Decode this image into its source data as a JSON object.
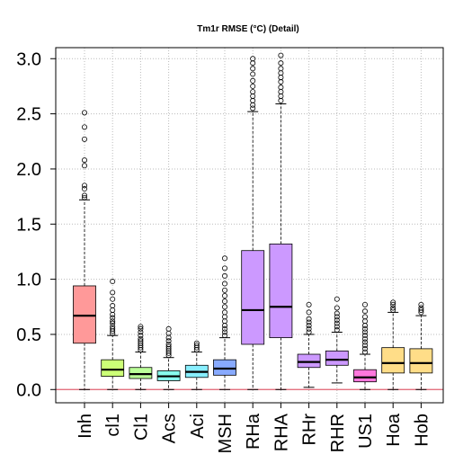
{
  "chart_data": {
    "type": "box",
    "title": "Tm1r RMSE (°C) (Detail)",
    "xlabel": "",
    "ylabel": "",
    "ylim": [
      -0.12,
      3.1
    ],
    "yticks": [
      0.0,
      0.5,
      1.0,
      1.5,
      2.0,
      2.5,
      3.0
    ],
    "ytick_labels": [
      "0.0",
      "0.5",
      "1.0",
      "1.5",
      "2.0",
      "2.5",
      "3.0"
    ],
    "grid": true,
    "reference_line": 0.0,
    "categories": [
      "Inh",
      "cl1",
      "Cl1",
      "Acs",
      "Aci",
      "MSH",
      "RHa",
      "RHA",
      "RHr",
      "RHR",
      "US1",
      "Hoa",
      "Hob"
    ],
    "boxes": [
      {
        "label": "Inh",
        "color": "#ff9999",
        "min": 0.0,
        "q1": 0.42,
        "median": 0.67,
        "q3": 0.94,
        "max": 1.72,
        "outliers": [
          1.74,
          1.76,
          1.82,
          1.85,
          2.03,
          2.08,
          2.27,
          2.38,
          2.51
        ]
      },
      {
        "label": "cl1",
        "color": "#ccff77",
        "min": 0.0,
        "q1": 0.12,
        "median": 0.18,
        "q3": 0.27,
        "max": 0.49,
        "outliers": [
          0.51,
          0.53,
          0.55,
          0.57,
          0.6,
          0.62,
          0.65,
          0.68,
          0.72,
          0.76,
          0.82,
          0.88,
          0.98
        ]
      },
      {
        "label": "Cl1",
        "color": "#bbff99",
        "min": 0.0,
        "q1": 0.1,
        "median": 0.14,
        "q3": 0.2,
        "max": 0.34,
        "outliers": [
          0.36,
          0.38,
          0.4,
          0.42,
          0.44,
          0.46,
          0.49,
          0.52,
          0.55,
          0.57
        ]
      },
      {
        "label": "Acs",
        "color": "#88ffee",
        "min": 0.0,
        "q1": 0.08,
        "median": 0.12,
        "q3": 0.17,
        "max": 0.29,
        "outliers": [
          0.31,
          0.33,
          0.35,
          0.37,
          0.39,
          0.41,
          0.44,
          0.47,
          0.51,
          0.55
        ]
      },
      {
        "label": "Aci",
        "color": "#88eeff",
        "min": 0.0,
        "q1": 0.11,
        "median": 0.16,
        "q3": 0.22,
        "max": 0.34,
        "outliers": [
          0.36,
          0.38,
          0.4,
          0.42
        ]
      },
      {
        "label": "MSH",
        "color": "#88aaff",
        "min": 0.0,
        "q1": 0.13,
        "median": 0.19,
        "q3": 0.27,
        "max": 0.47,
        "outliers": [
          0.49,
          0.52,
          0.55,
          0.58,
          0.62,
          0.66,
          0.7,
          0.75,
          0.8,
          0.85,
          0.9,
          0.96,
          1.03,
          1.1,
          1.19
        ]
      },
      {
        "label": "RHa",
        "color": "#cc99ff",
        "min": 0.0,
        "q1": 0.41,
        "median": 0.72,
        "q3": 1.26,
        "max": 2.52,
        "outliers": [
          2.55,
          2.58,
          2.62,
          2.66,
          2.7,
          2.75,
          2.8,
          2.86,
          2.91,
          2.96,
          3.0
        ]
      },
      {
        "label": "RHA",
        "color": "#cc99ff",
        "min": 0.0,
        "q1": 0.47,
        "median": 0.75,
        "q3": 1.32,
        "max": 2.59,
        "outliers": [
          2.62,
          2.66,
          2.7,
          2.74,
          2.79,
          2.83,
          2.87,
          2.91,
          2.96,
          3.03
        ]
      },
      {
        "label": "RHr",
        "color": "#cc99ff",
        "min": 0.02,
        "q1": 0.2,
        "median": 0.25,
        "q3": 0.32,
        "max": 0.5,
        "outliers": [
          0.52,
          0.55,
          0.58,
          0.61,
          0.64,
          0.7,
          0.77
        ]
      },
      {
        "label": "RHR",
        "color": "#cc99ff",
        "min": 0.06,
        "q1": 0.22,
        "median": 0.27,
        "q3": 0.35,
        "max": 0.52,
        "outliers": [
          0.54,
          0.57,
          0.6,
          0.63,
          0.66,
          0.69,
          0.74,
          0.82
        ]
      },
      {
        "label": "US1",
        "color": "#ff77dd",
        "min": 0.0,
        "q1": 0.07,
        "median": 0.11,
        "q3": 0.18,
        "max": 0.32,
        "outliers": [
          0.34,
          0.37,
          0.4,
          0.43,
          0.46,
          0.49,
          0.52,
          0.55,
          0.58,
          0.62,
          0.66,
          0.71,
          0.77
        ]
      },
      {
        "label": "Hoa",
        "color": "#ffdd88",
        "min": 0.0,
        "q1": 0.15,
        "median": 0.24,
        "q3": 0.38,
        "max": 0.7,
        "outliers": [
          0.72,
          0.74,
          0.77,
          0.79
        ]
      },
      {
        "label": "Hob",
        "color": "#ffdd88",
        "min": 0.0,
        "q1": 0.15,
        "median": 0.24,
        "q3": 0.37,
        "max": 0.67,
        "outliers": [
          0.7,
          0.72,
          0.74,
          0.77
        ]
      }
    ]
  }
}
